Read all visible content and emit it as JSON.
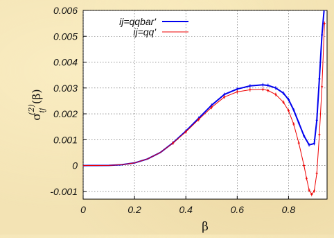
{
  "chart_data": {
    "type": "line",
    "xlabel": "β",
    "ylabel": {
      "main": "σ",
      "sup": "(2)",
      "sub": "ij",
      "tail": "(β)"
    },
    "xlim": [
      0,
      0.95
    ],
    "ylim": [
      -0.0013,
      0.006
    ],
    "xticks": [
      "0",
      "0.2",
      "0.4",
      "0.6",
      "0.8"
    ],
    "xtick_values": [
      0,
      0.2,
      0.4,
      0.6,
      0.8
    ],
    "yticks": [
      "-0.001",
      "0",
      "0.001",
      "0.002",
      "0.003",
      "0.004",
      "0.005",
      "0.006"
    ],
    "ytick_values": [
      -0.001,
      0,
      0.001,
      0.002,
      0.003,
      0.004,
      0.005,
      0.006
    ],
    "grid": true,
    "legend_position": "top-left",
    "series": [
      {
        "name": "ij=qqbar'",
        "color": "#0000ee",
        "x": [
          0,
          0.05,
          0.1,
          0.15,
          0.2,
          0.25,
          0.3,
          0.35,
          0.4,
          0.45,
          0.5,
          0.55,
          0.6,
          0.65,
          0.7,
          0.72,
          0.75,
          0.78,
          0.8,
          0.82,
          0.84,
          0.86,
          0.88,
          0.9,
          0.91,
          0.92,
          0.93,
          0.94
        ],
        "y": [
          0,
          5e-07,
          5e-06,
          3e-05,
          0.0001,
          0.00025,
          0.0005,
          0.00088,
          0.00133,
          0.00183,
          0.00233,
          0.00275,
          0.00296,
          0.00308,
          0.00312,
          0.0031,
          0.003,
          0.0028,
          0.00255,
          0.00215,
          0.00165,
          0.00115,
          0.0008,
          0.00085,
          0.00175,
          0.00335,
          0.00505,
          0.0062
        ]
      },
      {
        "name": "ij=qq'",
        "color": "#ee0000",
        "x": [
          0,
          0.05,
          0.1,
          0.15,
          0.2,
          0.25,
          0.3,
          0.35,
          0.4,
          0.45,
          0.5,
          0.55,
          0.6,
          0.65,
          0.7,
          0.72,
          0.75,
          0.78,
          0.8,
          0.82,
          0.84,
          0.86,
          0.87,
          0.88,
          0.89,
          0.9,
          0.91,
          0.92,
          0.93,
          0.94
        ],
        "y": [
          0,
          5e-07,
          5e-06,
          3e-05,
          0.0001,
          0.00025,
          0.0005,
          0.00087,
          0.0013,
          0.00178,
          0.00225,
          0.00265,
          0.00285,
          0.00293,
          0.00295,
          0.0029,
          0.00275,
          0.00245,
          0.00212,
          0.0016,
          0.00087,
          0.0,
          -0.0005,
          -0.00095,
          -0.00112,
          -0.00098,
          -0.0003,
          0.0012,
          0.00305,
          0.0055
        ]
      }
    ]
  }
}
